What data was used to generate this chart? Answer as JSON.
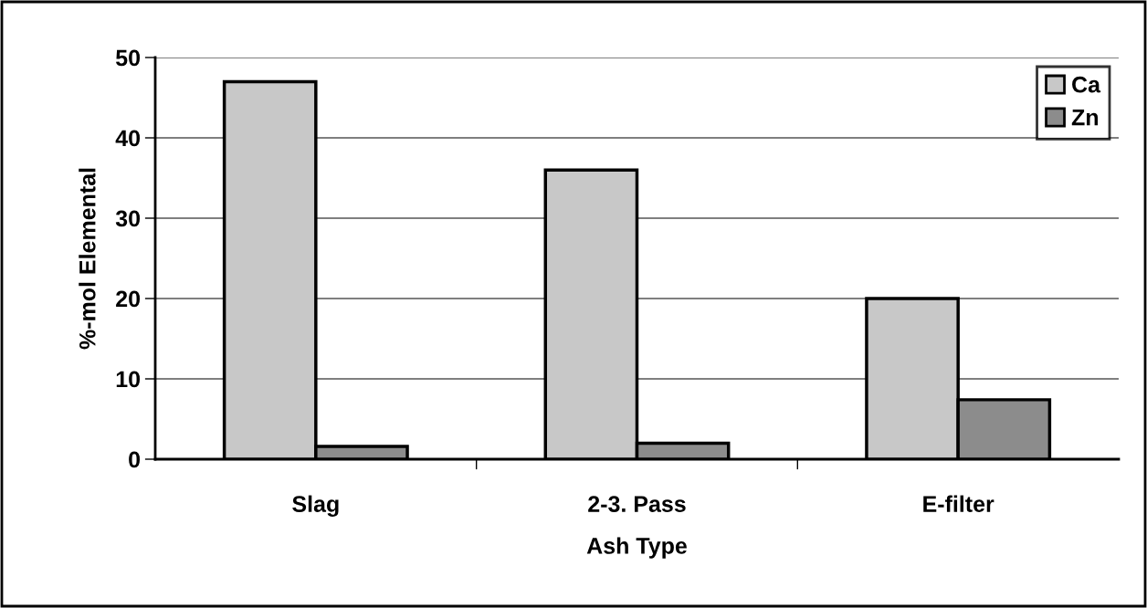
{
  "chart_data": {
    "type": "bar",
    "xlabel": "Ash Type",
    "ylabel": "%-mol Elemental",
    "categories": [
      "Slag",
      "2-3. Pass",
      "E-filter"
    ],
    "series": [
      {
        "name": "Ca",
        "color": "#c8c8c8",
        "values": [
          47,
          36,
          20
        ]
      },
      {
        "name": "Zn",
        "color": "#8c8c8c",
        "values": [
          1.6,
          2.0,
          7.4
        ]
      }
    ],
    "ylim": [
      0,
      50
    ],
    "yticks": [
      0,
      10,
      20,
      30,
      40,
      50
    ],
    "grid": "y",
    "legend": "top right"
  }
}
